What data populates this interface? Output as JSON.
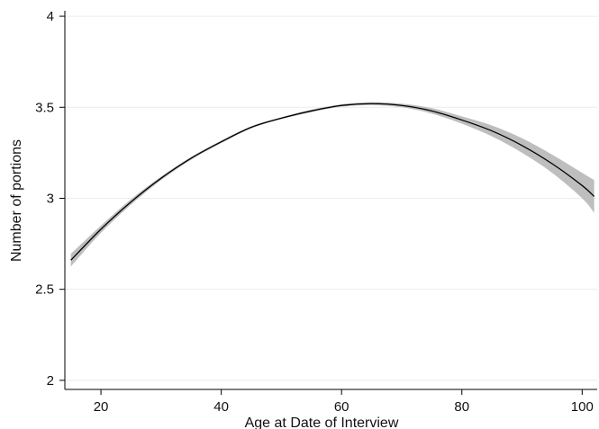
{
  "chart_data": {
    "type": "line",
    "title": "",
    "xlabel": "Age at Date of Interview",
    "ylabel": "Number of portions",
    "xlim": [
      14,
      102.5
    ],
    "ylim": [
      1.95,
      4.03
    ],
    "xticks": [
      20,
      40,
      60,
      80,
      100
    ],
    "xtick_labels": [
      "20",
      "40",
      "60",
      "80",
      "100"
    ],
    "yticks": [
      2,
      2.5,
      3,
      3.5,
      4
    ],
    "ytick_labels": [
      "2",
      "2.5",
      "3",
      "3.5",
      "4"
    ],
    "grid": true,
    "legend": "none",
    "series": [
      {
        "x": [
          15,
          20,
          25,
          30,
          35,
          40,
          45,
          50,
          55,
          60,
          65,
          70,
          75,
          80,
          85,
          90,
          95,
          100,
          102
        ],
        "values": [
          2.66,
          2.83,
          2.98,
          3.11,
          3.22,
          3.31,
          3.39,
          3.44,
          3.48,
          3.51,
          3.52,
          3.51,
          3.48,
          3.43,
          3.37,
          3.29,
          3.19,
          3.07,
          3.01
        ],
        "ci_lower": [
          2.625,
          2.81,
          2.965,
          3.1,
          3.212,
          3.303,
          3.384,
          3.435,
          3.473,
          3.503,
          3.512,
          3.5,
          3.465,
          3.41,
          3.34,
          3.25,
          3.14,
          3.0,
          2.92
        ],
        "ci_upper": [
          2.695,
          2.85,
          2.995,
          3.12,
          3.228,
          3.317,
          3.396,
          3.445,
          3.487,
          3.517,
          3.528,
          3.52,
          3.495,
          3.45,
          3.4,
          3.33,
          3.24,
          3.14,
          3.1
        ]
      }
    ],
    "colors": {
      "line": "#000000",
      "band": "#bebebe",
      "axis": "#000000",
      "grid": "#ececec"
    }
  }
}
